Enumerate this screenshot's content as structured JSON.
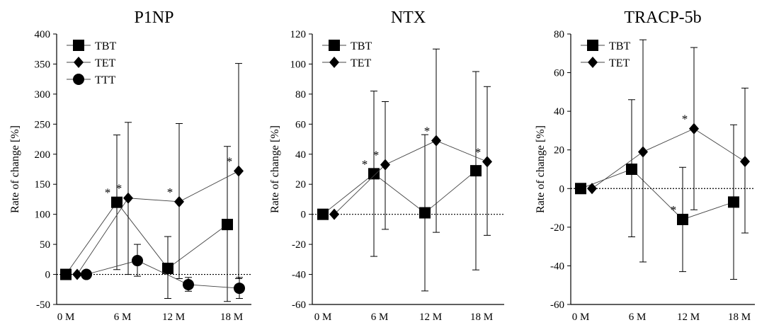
{
  "chart_data": [
    {
      "type": "scatter",
      "title": "P1NP",
      "xlabel": "",
      "ylabel": "Rate of change [%]",
      "categories": [
        "0 M",
        "6 M",
        "12 M",
        "18 M"
      ],
      "ylim": [
        -50,
        400
      ],
      "yticks": [
        -50,
        0,
        50,
        100,
        150,
        200,
        250,
        300,
        350,
        400
      ],
      "reference_line": 0,
      "legend_position": "top-left",
      "series": [
        {
          "name": "TBT",
          "marker": "square",
          "values": [
            0,
            120,
            10,
            83
          ],
          "err_low": [
            0,
            8,
            -40,
            -45
          ],
          "err_high": [
            0,
            232,
            63,
            213
          ],
          "significant": [
            false,
            true,
            false,
            false
          ]
        },
        {
          "name": "TET",
          "marker": "diamond",
          "values": [
            0,
            127,
            121,
            172
          ],
          "err_low": [
            0,
            0,
            -7,
            -7
          ],
          "err_high": [
            0,
            253,
            251,
            351
          ],
          "significant": [
            false,
            true,
            true,
            true
          ]
        },
        {
          "name": "TTT",
          "marker": "circle",
          "values": [
            0,
            23,
            -17,
            -23
          ],
          "err_low": [
            0,
            -3,
            -28,
            -40
          ],
          "err_high": [
            0,
            50,
            -5,
            -5
          ],
          "significant": [
            false,
            false,
            false,
            false
          ]
        }
      ]
    },
    {
      "type": "scatter",
      "title": "NTX",
      "xlabel": "",
      "ylabel": "Rate of change [%]",
      "categories": [
        "0 M",
        "6 M",
        "12 M",
        "18 M"
      ],
      "ylim": [
        -60,
        120
      ],
      "yticks": [
        -60,
        -40,
        -20,
        0,
        20,
        40,
        60,
        80,
        100,
        120
      ],
      "reference_line": 0,
      "legend_position": "top-left",
      "series": [
        {
          "name": "TBT",
          "marker": "square",
          "values": [
            0,
            27,
            1,
            29
          ],
          "err_low": [
            0,
            -28,
            -51,
            -37
          ],
          "err_high": [
            0,
            82,
            53,
            95
          ],
          "significant": [
            false,
            true,
            false,
            false
          ]
        },
        {
          "name": "TET",
          "marker": "diamond",
          "values": [
            0,
            33,
            49,
            35
          ],
          "err_low": [
            0,
            -10,
            -12,
            -14
          ],
          "err_high": [
            0,
            75,
            110,
            85
          ],
          "significant": [
            false,
            true,
            true,
            true
          ]
        }
      ]
    },
    {
      "type": "scatter",
      "title": "TRACP-5b",
      "xlabel": "",
      "ylabel": "Rate of change [%]",
      "categories": [
        "0 M",
        "6 M",
        "12 M",
        "18 M"
      ],
      "ylim": [
        -60,
        80
      ],
      "yticks": [
        -60,
        -40,
        -20,
        0,
        20,
        40,
        60,
        80
      ],
      "reference_line": 0,
      "legend_position": "top-left",
      "series": [
        {
          "name": "TBT",
          "marker": "square",
          "values": [
            0,
            10,
            -16,
            -7
          ],
          "err_low": [
            0,
            -25,
            -43,
            -47
          ],
          "err_high": [
            0,
            46,
            11,
            33
          ],
          "significant": [
            false,
            false,
            true,
            false
          ]
        },
        {
          "name": "TET",
          "marker": "diamond",
          "values": [
            0,
            19,
            31,
            14
          ],
          "err_low": [
            0,
            -38,
            -11,
            -23
          ],
          "err_high": [
            0,
            77,
            73,
            52
          ],
          "significant": [
            false,
            false,
            true,
            false
          ]
        }
      ]
    }
  ],
  "significance_symbol": "*"
}
